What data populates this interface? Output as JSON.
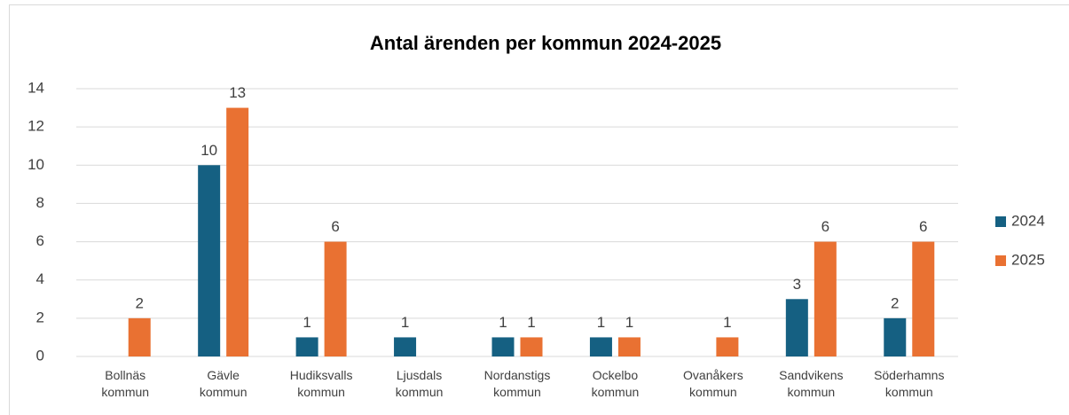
{
  "chart_data": {
    "type": "bar",
    "title": "Antal ärenden per kommun 2024-2025",
    "categories": [
      "Bollnäs kommun",
      "Gävle kommun",
      "Hudiksvalls kommun",
      "Ljusdals kommun",
      "Nordanstigs kommun",
      "Ockelbo kommun",
      "Ovanåkers kommun",
      "Sandvikens kommun",
      "Söderhamns kommun"
    ],
    "series": [
      {
        "name": "2024",
        "color": "#156082",
        "values": [
          null,
          10,
          1,
          1,
          1,
          1,
          null,
          3,
          2
        ]
      },
      {
        "name": "2025",
        "color": "#e97132",
        "values": [
          2,
          13,
          6,
          null,
          1,
          1,
          1,
          6,
          6
        ]
      }
    ],
    "ylim": [
      0,
      14
    ],
    "yticks": [
      0,
      2,
      4,
      6,
      8,
      10,
      12,
      14
    ],
    "grid": true,
    "legend": "right"
  }
}
